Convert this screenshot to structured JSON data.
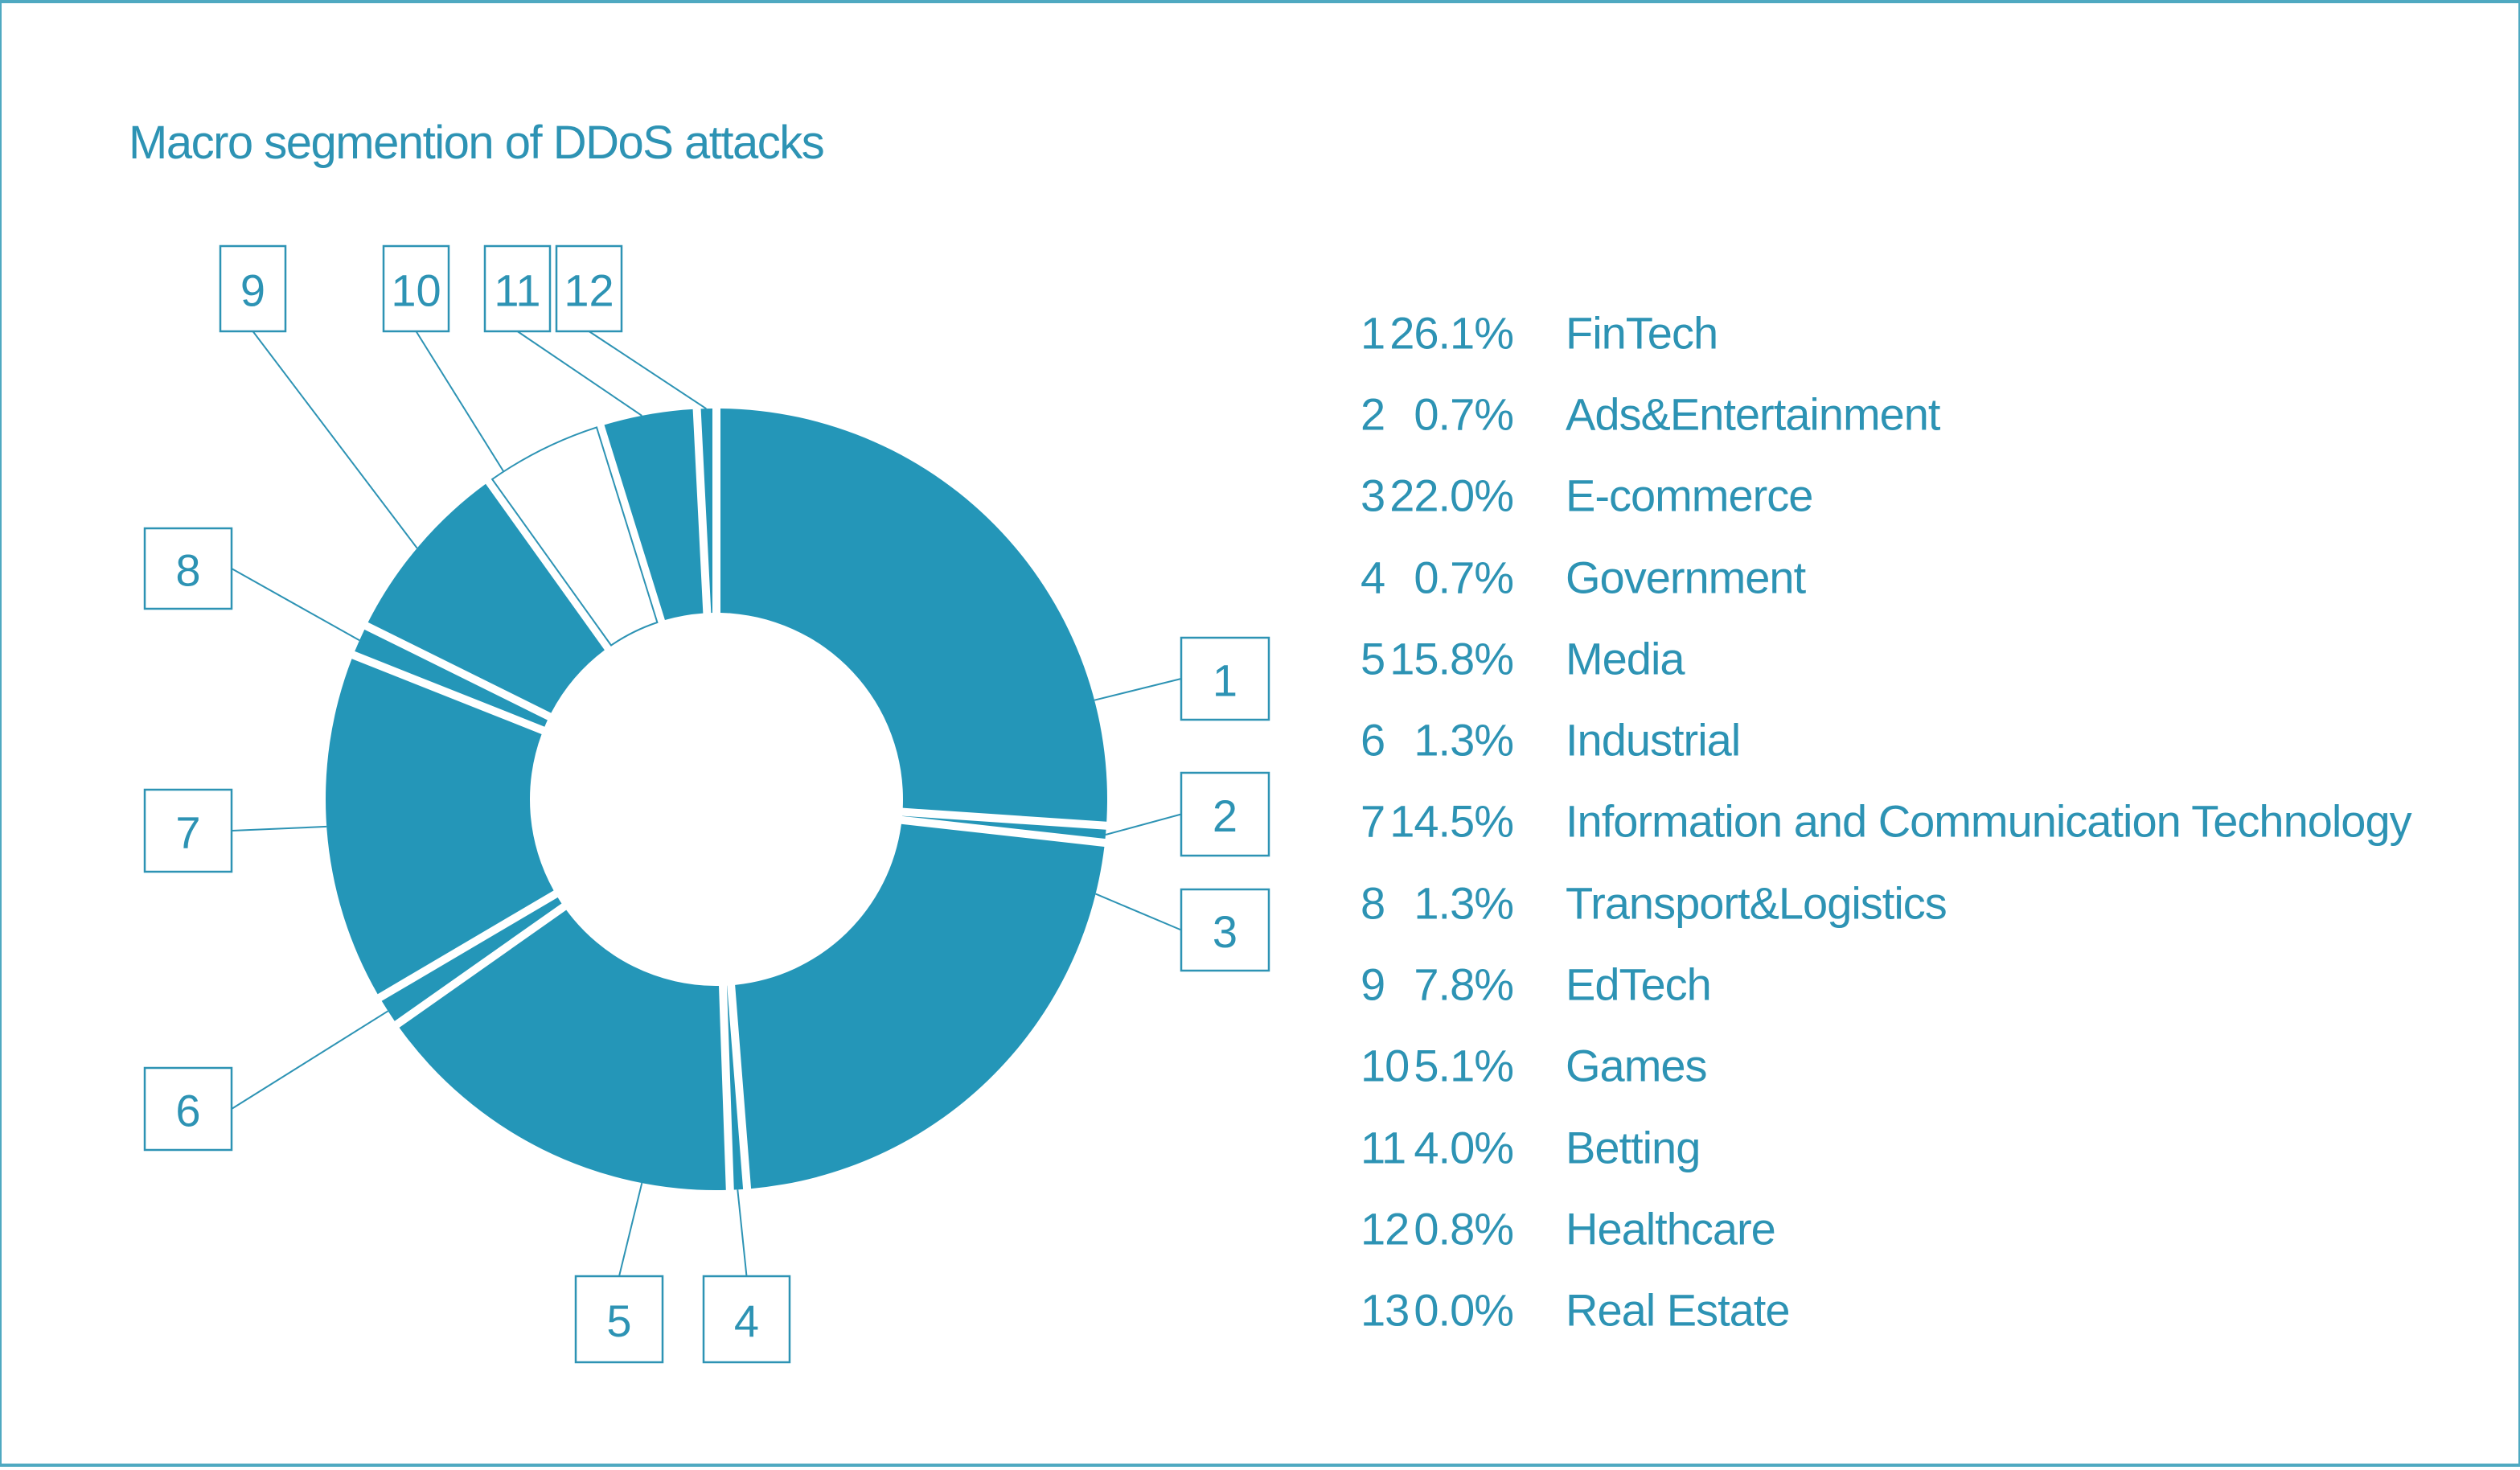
{
  "title": "Macro segmention of DDoS attacks",
  "frame": {
    "background": "#FFFFFF",
    "border_color": "#4FA9C1"
  },
  "colors": {
    "accent": "#2D93B4",
    "segment_fill": "#2496B8",
    "highlight_segment_fill": "#FFFFFF"
  },
  "chart_data": {
    "type": "pie",
    "subtype": "donut",
    "title": "Macro segmention of DDoS attacks",
    "direction": "clockwise",
    "start_angle_deg": 0,
    "legend_position": "right",
    "callout_numbers_shown": [
      "1",
      "2",
      "3",
      "4",
      "5",
      "6",
      "7",
      "8",
      "9",
      "10",
      "11",
      "12"
    ],
    "segments": [
      {
        "num": "1",
        "value": 26.1,
        "percent_label": "26.1%",
        "label": "FinTech"
      },
      {
        "num": "2",
        "value": 0.7,
        "percent_label": "0.7%",
        "label": "Ads&Entertainment"
      },
      {
        "num": "3",
        "value": 22.0,
        "percent_label": "22.0%",
        "label": "E-commerce"
      },
      {
        "num": "4",
        "value": 0.7,
        "percent_label": "0.7%",
        "label": "Government"
      },
      {
        "num": "5",
        "value": 15.8,
        "percent_label": "15.8%",
        "label": "Media"
      },
      {
        "num": "6",
        "value": 1.3,
        "percent_label": "1.3%",
        "label": "Industrial"
      },
      {
        "num": "7",
        "value": 14.5,
        "percent_label": "14.5%",
        "label": "Information and Communication Technology"
      },
      {
        "num": "8",
        "value": 1.3,
        "percent_label": "1.3%",
        "label": "Transport&Logistics"
      },
      {
        "num": "9",
        "value": 7.8,
        "percent_label": "7.8%",
        "label": "EdTech"
      },
      {
        "num": "10",
        "value": 5.1,
        "percent_label": "5.1%",
        "label": "Games",
        "fill": "#FFFFFF"
      },
      {
        "num": "11",
        "value": 4.0,
        "percent_label": "4.0%",
        "label": "Betting"
      },
      {
        "num": "12",
        "value": 0.8,
        "percent_label": "0.8%",
        "label": "Healthcare"
      },
      {
        "num": "13",
        "value": 0.0,
        "percent_label": "0.0%",
        "label": "Real Estate"
      }
    ]
  }
}
